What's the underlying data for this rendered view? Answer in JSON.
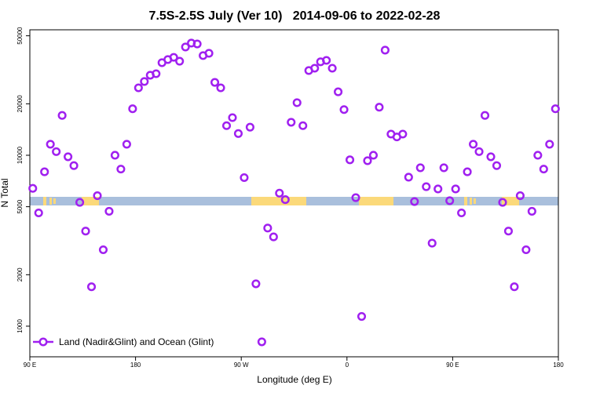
{
  "chart_data": {
    "type": "scatter",
    "title": "7.5S-2.5S July (Ver 10)   2014-09-06 to 2022-02-28",
    "x_label": "Longitude (deg E)",
    "y_label": "N Total",
    "log_y": true,
    "legend_position": "lower left",
    "xlim": [
      90,
      540
    ],
    "xticks": [
      {
        "value": 90,
        "label": "90 E"
      },
      {
        "value": 180,
        "label": "180"
      },
      {
        "value": 270,
        "label": "90 W"
      },
      {
        "value": 360,
        "label": "0"
      },
      {
        "value": 450,
        "label": "90 E"
      },
      {
        "value": 540,
        "label": "180"
      }
    ],
    "ylim": [
      662,
      54200
    ],
    "yticks": [
      1000,
      2000,
      5000,
      10000,
      20000,
      50000
    ],
    "x": [
      92.5,
      97.5,
      102.5,
      107.5,
      112.5,
      117.5,
      122.5,
      127.5,
      132.5,
      137.5,
      142.5,
      147.5,
      152.5,
      157.5,
      162.5,
      167.5,
      172.5,
      177.5,
      182.5,
      187.5,
      192.5,
      197.5,
      202.5,
      207.5,
      212.5,
      217.5,
      222.5,
      227.5,
      232.5,
      237.5,
      242.5,
      247.5,
      252.5,
      257.5,
      262.5,
      267.5,
      272.5,
      277.5,
      282.5,
      287.5,
      292.5,
      297.5,
      302.5,
      307.5,
      312.5,
      317.5,
      322.5,
      327.5,
      332.5,
      337.5,
      342.5,
      347.5,
      352.5,
      357.5,
      362.5,
      367.5,
      372.5,
      377.5,
      382.5,
      387.5,
      392.5,
      397.5,
      402.5,
      407.5,
      412.5,
      417.5,
      422.5,
      427.5,
      432.5,
      437.5,
      442.5,
      447.5,
      452.5,
      457.5,
      462.5,
      467.5,
      472.5,
      477.5,
      482.5,
      487.5,
      492.5,
      497.5,
      502.5,
      507.5,
      512.5,
      517.5,
      522.5,
      527.5,
      532.5,
      537.5
    ],
    "series": [
      {
        "name": "Land (Nadir&Glint) and Ocean (Glint)",
        "color": "#a020f0",
        "values": [
          6400,
          4600,
          8000,
          11600,
          10500,
          17100,
          9800,
          8700,
          5300,
          3600,
          1700,
          5800,
          2800,
          4700,
          10000,
          8300,
          11600,
          18700,
          24800,
          27000,
          29400,
          30000,
          34800,
          36300,
          37400,
          35500,
          43000,
          45300,
          44800,
          38300,
          39500,
          26700,
          24800,
          14900,
          16600,
          13400,
          7400,
          14600,
          1770,
          810,
          3750,
          3330,
          6000,
          5500,
          15600,
          20300,
          14900,
          31300,
          32300,
          35200,
          35900,
          32300,
          23500,
          18500,
          9400,
          5650,
          1140,
          9290,
          10000,
          19100,
          41200,
          13300,
          12800,
          13300,
          7440,
          5360,
          8450,
          6550,
          3060,
          6350,
          8450,
          5420,
          6350,
          4600,
          8000,
          11600,
          10500,
          17100,
          9800,
          8700,
          5300,
          3600,
          1700,
          5800,
          2800,
          4700,
          10000,
          8300,
          11600,
          18700
        ]
      }
    ]
  }
}
